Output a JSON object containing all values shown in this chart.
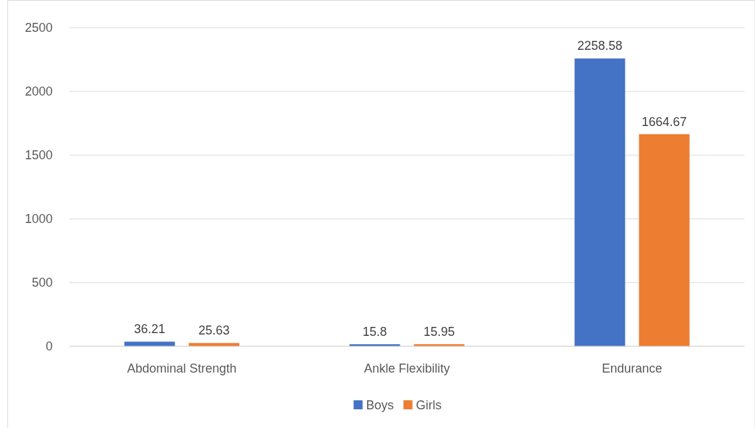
{
  "chart_data": {
    "type": "bar",
    "categories": [
      "Abdominal Strength",
      "Ankle Flexibility",
      "Endurance"
    ],
    "series": [
      {
        "name": "Boys",
        "color": "#4472c4",
        "values": [
          36.21,
          15.8,
          2258.58
        ]
      },
      {
        "name": "Girls",
        "color": "#ed7d31",
        "values": [
          25.63,
          15.95,
          1664.67
        ]
      }
    ],
    "ylim": [
      0,
      2500
    ],
    "yticks": [
      0,
      500,
      1000,
      1500,
      2000,
      2500
    ],
    "grid": "y",
    "legend": "bottom",
    "data_labels": true
  }
}
